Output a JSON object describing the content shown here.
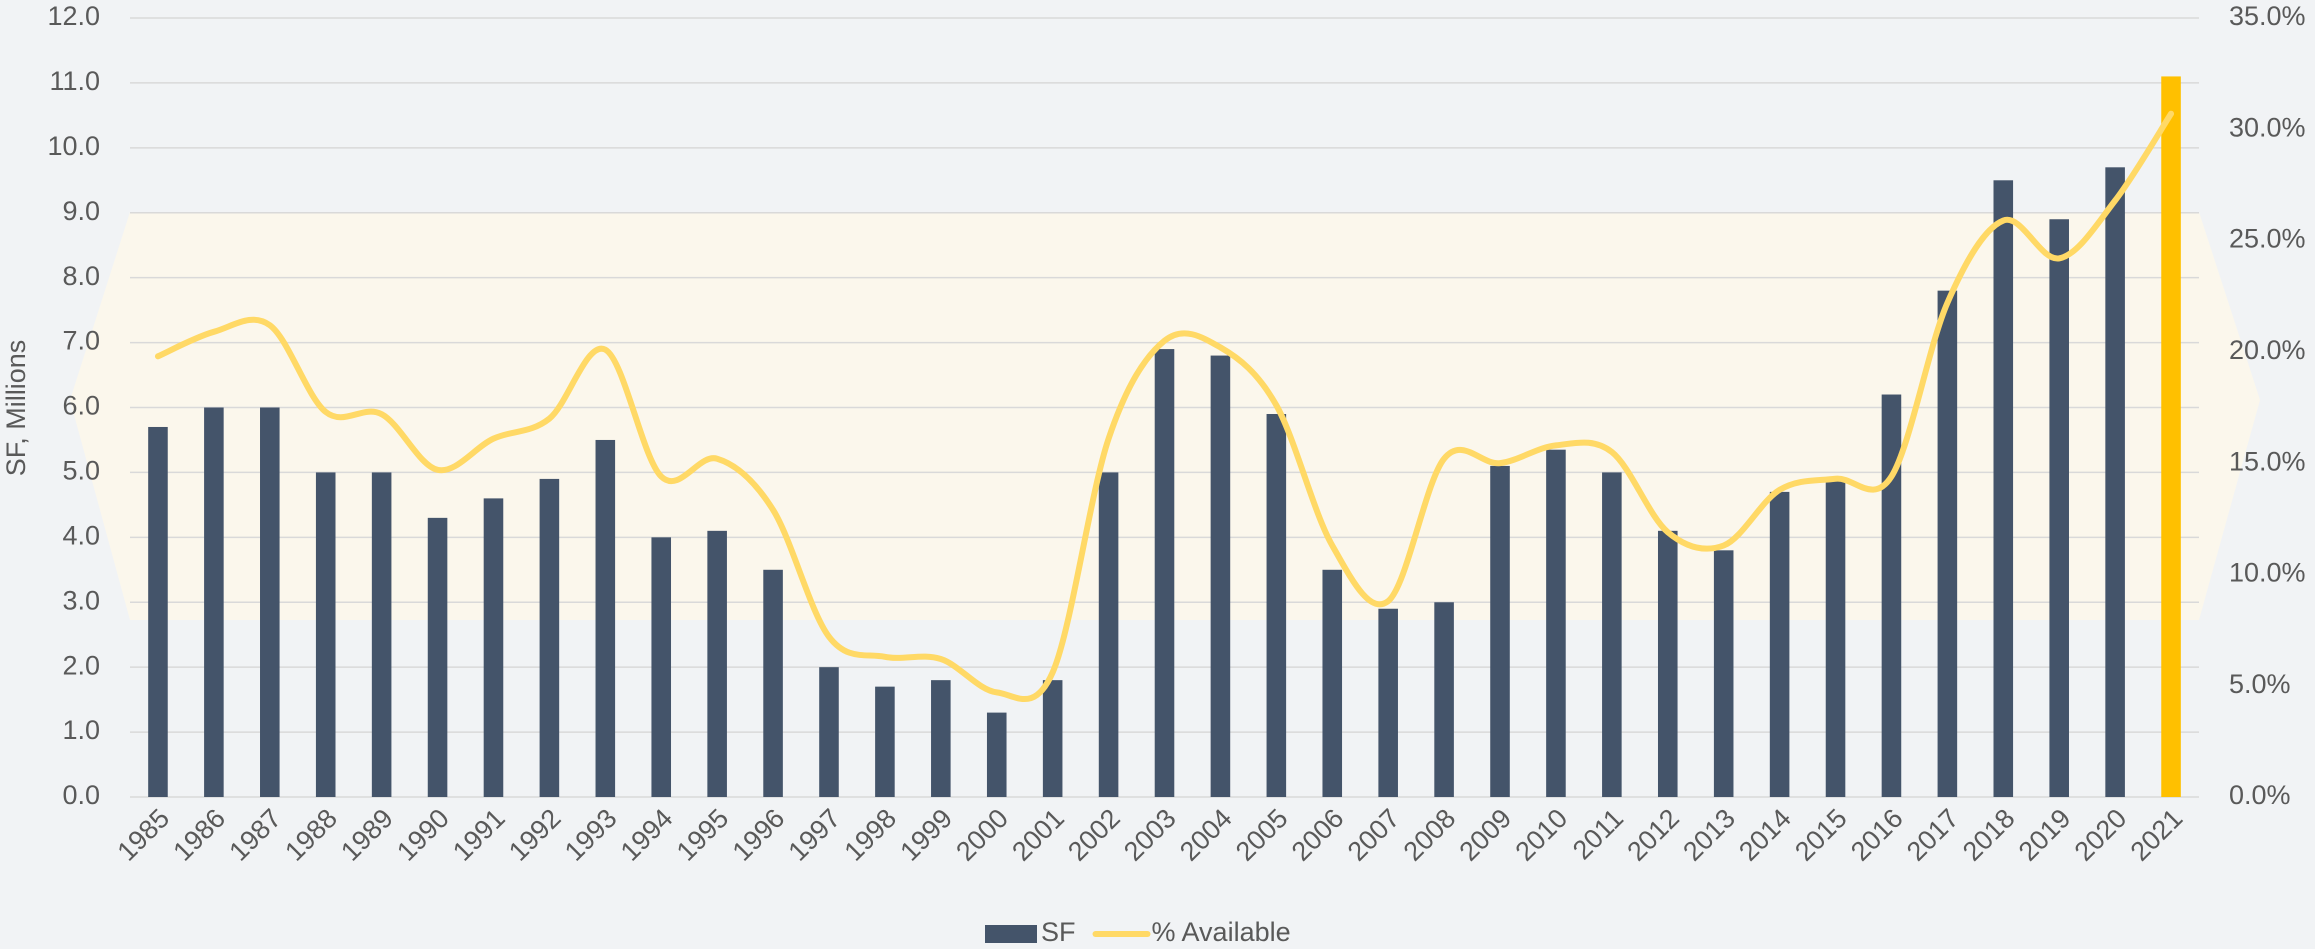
{
  "chart_data": {
    "type": "bar-line",
    "y_axis_title": "SF, Millions",
    "categories": [
      "1985",
      "1986",
      "1987",
      "1988",
      "1989",
      "1990",
      "1991",
      "1992",
      "1993",
      "1994",
      "1995",
      "1996",
      "1997",
      "1998",
      "1999",
      "2000",
      "2001",
      "2002",
      "2003",
      "2004",
      "2005",
      "2006",
      "2007",
      "2008",
      "2009",
      "2010",
      "2011",
      "2012",
      "2013",
      "2014",
      "2015",
      "2016",
      "2017",
      "2018",
      "2019",
      "2020",
      "2021"
    ],
    "series": [
      {
        "name": "SF",
        "type": "bar",
        "color": "#44546a",
        "colors": [
          "#44546a",
          "#44546a",
          "#44546a",
          "#44546a",
          "#44546a",
          "#44546a",
          "#44546a",
          "#44546a",
          "#44546a",
          "#44546a",
          "#44546a",
          "#44546a",
          "#44546a",
          "#44546a",
          "#44546a",
          "#44546a",
          "#44546a",
          "#44546a",
          "#44546a",
          "#44546a",
          "#44546a",
          "#44546a",
          "#44546a",
          "#44546a",
          "#44546a",
          "#44546a",
          "#44546a",
          "#44546a",
          "#44546a",
          "#44546a",
          "#44546a",
          "#44546a",
          "#44546a",
          "#44546a",
          "#44546a",
          "#44546a",
          "#ffc000"
        ],
        "values": [
          5.7,
          6.0,
          6.0,
          5.0,
          5.0,
          4.3,
          4.6,
          4.9,
          5.5,
          4.0,
          4.1,
          3.5,
          2.0,
          1.7,
          1.8,
          1.3,
          1.8,
          5.0,
          6.9,
          6.8,
          5.9,
          3.5,
          2.9,
          3.0,
          5.1,
          5.35,
          5.0,
          4.1,
          3.8,
          4.7,
          4.9,
          6.2,
          7.8,
          9.5,
          8.9,
          9.7,
          11.1
        ]
      },
      {
        "name": "% Available",
        "type": "line",
        "axis": "y2",
        "color": "#ffd966",
        "values": [
          19.8,
          20.9,
          21.2,
          17.3,
          17.2,
          14.7,
          16.1,
          17.0,
          20.1,
          14.4,
          15.2,
          12.9,
          7.2,
          6.3,
          6.2,
          4.7,
          5.6,
          16.1,
          20.5,
          20.2,
          17.6,
          11.3,
          8.8,
          15.2,
          15.0,
          15.8,
          15.5,
          11.9,
          11.3,
          13.8,
          14.3,
          14.4,
          22.2,
          25.9,
          24.2,
          26.8,
          30.7
        ]
      }
    ],
    "ylim": [
      0,
      12
    ],
    "yticks": [
      {
        "value": 0,
        "label": "0.0"
      },
      {
        "value": 1,
        "label": "1.0"
      },
      {
        "value": 2,
        "label": "2.0"
      },
      {
        "value": 3,
        "label": "3.0"
      },
      {
        "value": 4,
        "label": "4.0"
      },
      {
        "value": 5,
        "label": "5.0"
      },
      {
        "value": 6,
        "label": "6.0"
      },
      {
        "value": 7,
        "label": "7.0"
      },
      {
        "value": 8,
        "label": "8.0"
      },
      {
        "value": 9,
        "label": "9.0"
      },
      {
        "value": 10,
        "label": "10.0"
      },
      {
        "value": 11,
        "label": "11.0"
      },
      {
        "value": 12,
        "label": "12.0"
      }
    ],
    "y2lim": [
      0,
      35
    ],
    "y2ticks": [
      {
        "value": 0,
        "label": "0.0%"
      },
      {
        "value": 5,
        "label": "5.0%"
      },
      {
        "value": 10,
        "label": "10.0%"
      },
      {
        "value": 15,
        "label": "15.0%"
      },
      {
        "value": 20,
        "label": "20.0%"
      },
      {
        "value": 25,
        "label": "25.0%"
      },
      {
        "value": 30,
        "label": "30.0%"
      },
      {
        "value": 35,
        "label": "35.0%"
      }
    ],
    "grid": true,
    "legend": "bottom"
  }
}
